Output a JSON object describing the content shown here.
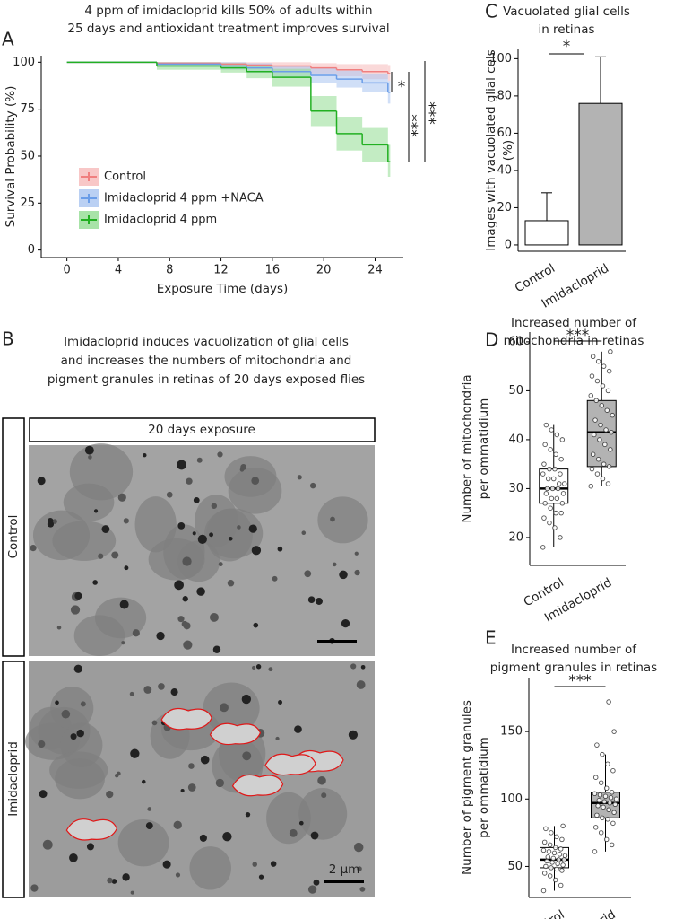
{
  "chart_data": [
    {
      "type": "line",
      "panel": "A",
      "title": [
        "4 ppm of imidacloprid kills 50% of adults within",
        "25 days and antioxidant treatment improves survival"
      ],
      "x_label": "Exposure Time (days)",
      "y_label": "Survival Probability (%)",
      "xlim": [
        -2,
        26.2
      ],
      "ylim": [
        -4,
        103.5
      ],
      "xticks": [
        0,
        4,
        8,
        12,
        16,
        20,
        24
      ],
      "yticks": [
        0,
        25,
        50,
        75,
        100
      ],
      "legend": "lower left",
      "series": [
        {
          "name": "Control",
          "color": "#f07f7f",
          "band_color": "#f6b9b9",
          "x": [
            0,
            7,
            12,
            14,
            16,
            19,
            21,
            23,
            25
          ],
          "values": [
            100,
            99.5,
            99,
            98.5,
            98,
            97,
            96,
            95,
            94
          ],
          "lower": [
            100,
            98.5,
            97.5,
            96.5,
            95.5,
            94,
            92.5,
            91,
            90
          ],
          "upper": [
            100,
            100,
            100,
            100,
            100,
            99.5,
            99,
            99,
            98.5
          ]
        },
        {
          "name": "Imidacloprid 4 ppm +NACA",
          "color": "#6a9de8",
          "band_color": "#a9c4f0",
          "x": [
            0,
            7,
            12,
            14,
            16,
            19,
            21,
            23,
            25
          ],
          "values": [
            100,
            99,
            98,
            97,
            95,
            93,
            91,
            89,
            84
          ],
          "lower": [
            100,
            97.5,
            96,
            94.5,
            92,
            89,
            86.5,
            84,
            78
          ],
          "upper": [
            100,
            100,
            100,
            99.5,
            98,
            97,
            95.5,
            94,
            90
          ]
        },
        {
          "name": "Imidacloprid 4 ppm",
          "color": "#22b022",
          "band_color": "#92dc92",
          "x": [
            0,
            7,
            12,
            14,
            16,
            19,
            21,
            23,
            25
          ],
          "values": [
            100,
            98,
            97,
            95,
            92,
            74,
            62,
            56,
            47
          ],
          "lower": [
            100,
            96,
            94.5,
            91.5,
            87,
            66,
            53,
            47,
            39
          ],
          "upper": [
            100,
            100,
            99.5,
            98.5,
            96.5,
            82,
            71,
            65,
            56
          ]
        }
      ],
      "annotations": [
        "*",
        "***",
        "***"
      ]
    },
    {
      "type": "bar",
      "panel": "C",
      "title": [
        "Vacuolated glial cells",
        "in retinas"
      ],
      "y_label": [
        "Images with vacuolated glial cels",
        "(%)"
      ],
      "categories": [
        "Control",
        "Imidacloprid"
      ],
      "values": [
        13,
        76
      ],
      "errors": [
        15,
        25
      ],
      "colors": [
        "#ffffff",
        "#b3b3b3"
      ],
      "ylim": [
        -3.4,
        105
      ],
      "yticks": [
        0,
        20,
        40,
        60,
        80,
        100
      ],
      "annotations": [
        "*"
      ]
    },
    {
      "type": "box",
      "panel": "D",
      "title": [
        "Increased number of",
        "mitochondria in retinas"
      ],
      "y_label": [
        "Number of mitochondria",
        "per ommatidium"
      ],
      "ylim": [
        14.3,
        62
      ],
      "yticks": [
        20,
        30,
        40,
        50,
        60
      ],
      "annotations": [
        "***"
      ],
      "boxes": [
        {
          "name": "Control",
          "color": "#ffffff",
          "min": 18,
          "q1": 27,
          "median": 30,
          "q3": 34,
          "max": 43,
          "points": [
            18,
            20,
            22,
            23,
            24,
            25,
            25,
            26,
            27,
            27,
            28,
            28,
            29,
            29,
            30,
            30,
            30,
            31,
            31,
            32,
            32,
            33,
            33,
            34,
            34,
            35,
            36,
            37,
            38,
            39,
            40,
            41,
            42,
            43
          ]
        },
        {
          "name": "Imidacloprid",
          "color": "#b3b3b3",
          "min": 30.5,
          "q1": 34.5,
          "median": 41.5,
          "q3": 48,
          "max": 58,
          "points": [
            30.5,
            31,
            32,
            33,
            34,
            34.5,
            35,
            36,
            37,
            38,
            39,
            40,
            41,
            41.5,
            42,
            43,
            44,
            45,
            46,
            47,
            48,
            49,
            50,
            51,
            52,
            53,
            54,
            55,
            56,
            57,
            58
          ]
        }
      ]
    },
    {
      "type": "box",
      "panel": "E",
      "title": [
        "Increased number of",
        "pigment granules in retinas"
      ],
      "y_label": [
        "Number of pigment granules",
        "per ommatidium"
      ],
      "ylim": [
        27,
        190
      ],
      "yticks": [
        50,
        100,
        150
      ],
      "annotations": [
        "***"
      ],
      "boxes": [
        {
          "name": "Control",
          "color": "#ffffff",
          "min": 32,
          "q1": 49,
          "median": 55,
          "q3": 64,
          "max": 80,
          "points": [
            32,
            36,
            40,
            43,
            45,
            47,
            48,
            49,
            50,
            51,
            52,
            53,
            54,
            55,
            55,
            56,
            57,
            58,
            59,
            60,
            61,
            62,
            63,
            64,
            66,
            68,
            70,
            72,
            75,
            78,
            80
          ]
        },
        {
          "name": "Imidacloprid",
          "color": "#b3b3b3",
          "min": 61,
          "q1": 86,
          "median": 97,
          "q3": 105,
          "max": 133,
          "points": [
            61,
            66,
            70,
            75,
            79,
            82,
            85,
            86,
            88,
            90,
            92,
            94,
            95,
            96,
            97,
            98,
            99,
            100,
            101,
            102,
            103,
            104,
            105,
            108,
            112,
            116,
            121,
            126,
            133,
            140,
            150,
            172
          ]
        }
      ]
    }
  ],
  "figure_b": {
    "panel": "B",
    "title": [
      "Imidacloprid induces vacuolization of glial cells",
      "and increases the numbers of mitochondria and",
      "pigment granules in retinas of 20 days exposed flies"
    ],
    "header": "20 days exposure",
    "rows": [
      "Control",
      "Imidacloprid"
    ],
    "scale_bar": "2 µm"
  }
}
